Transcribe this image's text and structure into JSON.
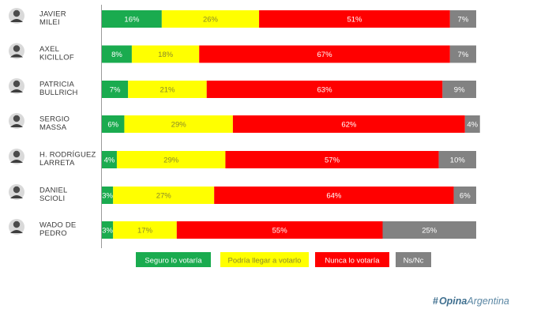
{
  "chart_data": {
    "type": "bar",
    "orientation": "horizontal",
    "stacked": true,
    "categories": [
      [
        "JAVIER",
        "MILEI"
      ],
      [
        "AXEL",
        "KICILLOF"
      ],
      [
        "PATRICIA",
        "BULLRICH"
      ],
      [
        "SERGIO",
        "MASSA"
      ],
      [
        "H. RODRÍGUEZ",
        "LARRETA"
      ],
      [
        "DANIEL",
        "SCIOLI"
      ],
      [
        "WADO DE",
        "PEDRO"
      ]
    ],
    "series": [
      {
        "name": "Seguro lo votaría",
        "color": "#1aab4f",
        "label_color": "#ffffff",
        "values": [
          16,
          8,
          7,
          6,
          4,
          3,
          3
        ]
      },
      {
        "name": "Podría llegar a votarlo",
        "color": "#ffff00",
        "label_color": "#8a8a2a",
        "values": [
          26,
          18,
          21,
          29,
          29,
          27,
          17
        ]
      },
      {
        "name": "Nunca lo votaría",
        "color": "#ff0000",
        "label_color": "#ffffff",
        "values": [
          51,
          67,
          63,
          62,
          57,
          64,
          55
        ]
      },
      {
        "name": "Ns/Nc",
        "color": "#828282",
        "label_color": "#ffffff",
        "values": [
          7,
          7,
          9,
          4,
          10,
          6,
          25
        ]
      }
    ],
    "value_suffix": "%",
    "legend_position": "bottom",
    "grid": false,
    "title": "",
    "xlabel": "",
    "ylabel": ""
  },
  "brand": {
    "hash": "#",
    "bold": "Opina",
    "light": "Argentina"
  }
}
